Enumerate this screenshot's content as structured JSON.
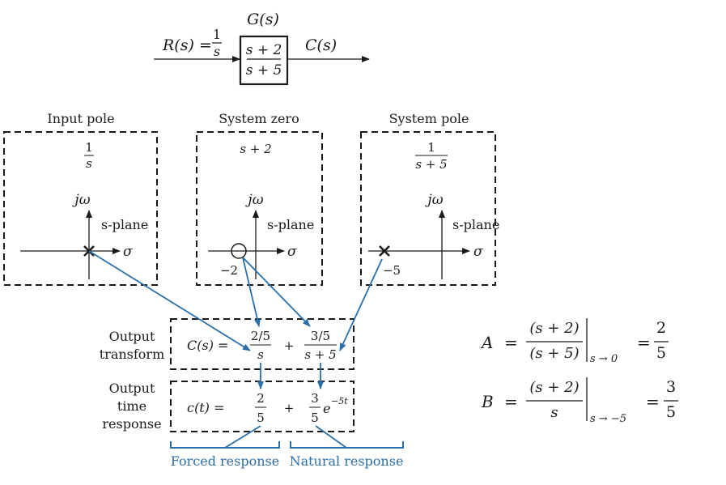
{
  "block": {
    "title": "G(s)",
    "input_label": "R(s) =",
    "input_num": "1",
    "input_den": "s",
    "tf_num": "s + 2",
    "tf_den": "s + 5",
    "output_label": "C(s)"
  },
  "panels": [
    {
      "title": "Input pole",
      "expr_num": "1",
      "expr_den": "s",
      "axis_label": "jω",
      "plane_label": "s-plane",
      "sigma": "σ",
      "marker": "x",
      "tick": ""
    },
    {
      "title": "System zero",
      "expr_num": "s + 2",
      "expr_den": "",
      "axis_label": "jω",
      "plane_label": "s-plane",
      "sigma": "σ",
      "marker": "o",
      "tick": "−2"
    },
    {
      "title": "System pole",
      "expr_num": "1",
      "expr_den": "s + 5",
      "axis_label": "jω",
      "plane_label": "s-plane",
      "sigma": "σ",
      "marker": "x",
      "tick": "−5"
    }
  ],
  "transform_row": {
    "label_line1": "Output",
    "label_line2": "transform",
    "lhs": "C(s) =",
    "term1_num": "2/5",
    "term1_den": "s",
    "plus": "+",
    "term2_num": "3/5",
    "term2_den": "s + 5"
  },
  "time_row": {
    "label_line1": "Output",
    "label_line2": "time",
    "label_line3": "response",
    "lhs": "c(t) =",
    "term1_num": "2",
    "term1_den": "5",
    "plus": "+",
    "term2_num": "3",
    "term2_den": "5",
    "term2_exp_base": "e",
    "term2_exp_power": "−5t"
  },
  "responses": {
    "forced": "Forced response",
    "natural": "Natural response"
  },
  "residues": {
    "A": {
      "lhs": "A",
      "eq": "=",
      "num": "(s + 2)",
      "den": "(s + 5)",
      "eval": "s → 0",
      "eq2": "=",
      "res_num": "2",
      "res_den": "5"
    },
    "B": {
      "lhs": "B",
      "eq": "=",
      "num": "(s + 2)",
      "den": "s",
      "eval": "s → −5",
      "eq2": "=",
      "res_num": "3",
      "res_den": "5"
    }
  },
  "colors": {
    "arrow_blue": "#2b6fa8",
    "ink": "#1a1a1a"
  }
}
